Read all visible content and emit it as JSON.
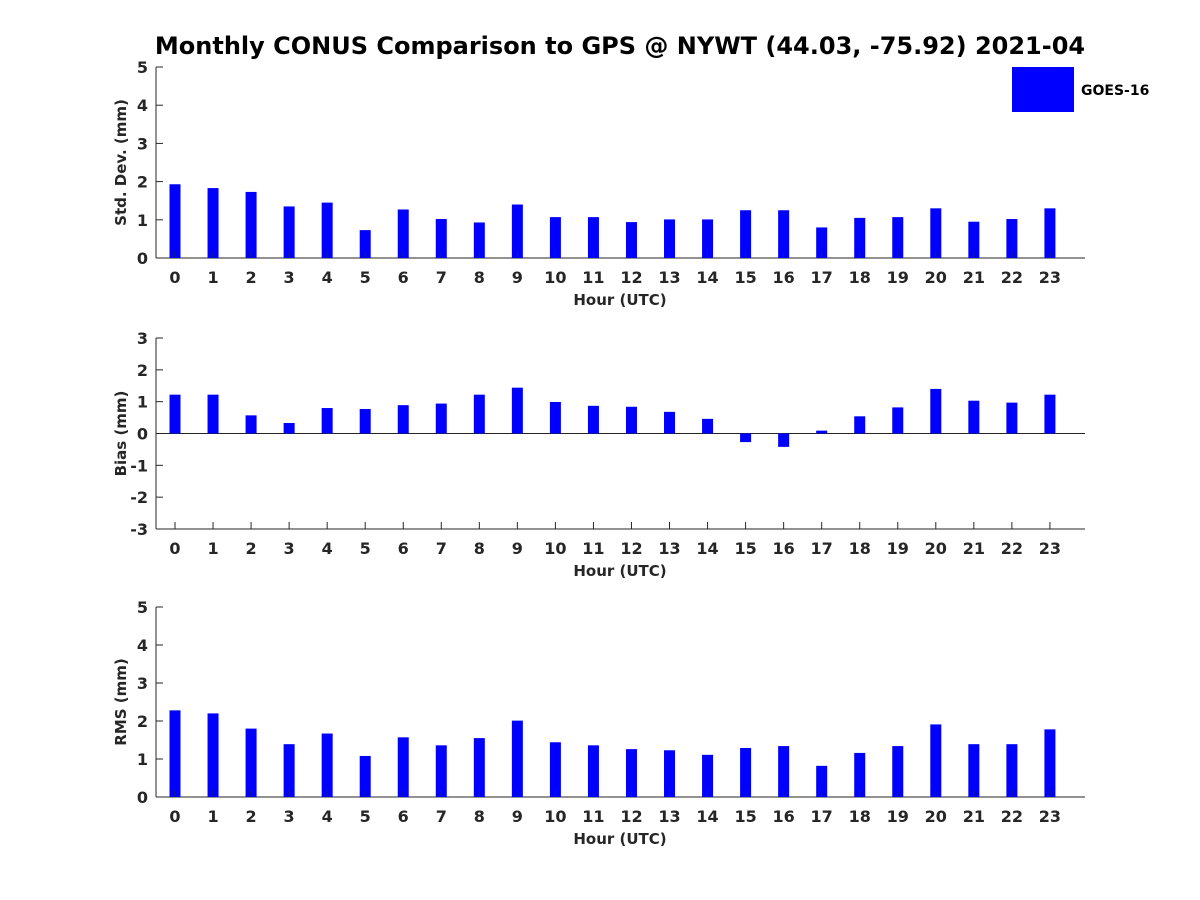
{
  "chart_data": {
    "title": "Monthly CONUS Comparison to GPS @ NYWT (44.03, -75.92) 2021-04",
    "colors": {
      "bar": "#0000ff",
      "axis": "#262626"
    },
    "legend": {
      "label": "GOES-16",
      "placement": "top-right"
    },
    "panels": [
      {
        "type": "bar",
        "ylabel": "Std. Dev. (mm)",
        "xlabel": "Hour (UTC)",
        "ylim": [
          0,
          5
        ],
        "yticks": [
          0,
          1,
          2,
          3,
          4,
          5
        ],
        "categories": [
          "0",
          "1",
          "2",
          "3",
          "4",
          "5",
          "6",
          "7",
          "8",
          "9",
          "10",
          "11",
          "12",
          "13",
          "14",
          "15",
          "16",
          "17",
          "18",
          "19",
          "20",
          "21",
          "22",
          "23"
        ],
        "series": [
          {
            "name": "GOES-16",
            "values": [
              1.93,
              1.83,
              1.73,
              1.35,
              1.45,
              0.73,
              1.27,
              1.02,
              0.93,
              1.4,
              1.07,
              1.07,
              0.94,
              1.01,
              1.01,
              1.25,
              1.25,
              0.8,
              1.05,
              1.07,
              1.3,
              0.95,
              1.02,
              1.3
            ]
          }
        ]
      },
      {
        "type": "bar",
        "ylabel": "Bias (mm)",
        "xlabel": "Hour (UTC)",
        "ylim": [
          -3,
          3
        ],
        "yticks": [
          -3,
          -2,
          -1,
          0,
          1,
          2,
          3
        ],
        "categories": [
          "0",
          "1",
          "2",
          "3",
          "4",
          "5",
          "6",
          "7",
          "8",
          "9",
          "10",
          "11",
          "12",
          "13",
          "14",
          "15",
          "16",
          "17",
          "18",
          "19",
          "20",
          "21",
          "22",
          "23"
        ],
        "series": [
          {
            "name": "GOES-16",
            "values": [
              1.22,
              1.22,
              0.57,
              0.33,
              0.8,
              0.77,
              0.89,
              0.94,
              1.22,
              1.44,
              0.99,
              0.87,
              0.84,
              0.68,
              0.46,
              -0.27,
              -0.42,
              0.09,
              0.54,
              0.82,
              1.4,
              1.03,
              0.97,
              1.22
            ]
          }
        ]
      },
      {
        "type": "bar",
        "ylabel": "RMS (mm)",
        "xlabel": "Hour (UTC)",
        "ylim": [
          0,
          5
        ],
        "yticks": [
          0,
          1,
          2,
          3,
          4,
          5
        ],
        "categories": [
          "0",
          "1",
          "2",
          "3",
          "4",
          "5",
          "6",
          "7",
          "8",
          "9",
          "10",
          "11",
          "12",
          "13",
          "14",
          "15",
          "16",
          "17",
          "18",
          "19",
          "20",
          "21",
          "22",
          "23"
        ],
        "series": [
          {
            "name": "GOES-16",
            "values": [
              2.28,
              2.2,
              1.8,
              1.39,
              1.67,
              1.08,
              1.57,
              1.36,
              1.55,
              2.01,
              1.44,
              1.36,
              1.26,
              1.23,
              1.11,
              1.29,
              1.34,
              0.82,
              1.16,
              1.34,
              1.91,
              1.39,
              1.39,
              1.78
            ]
          }
        ]
      }
    ]
  }
}
